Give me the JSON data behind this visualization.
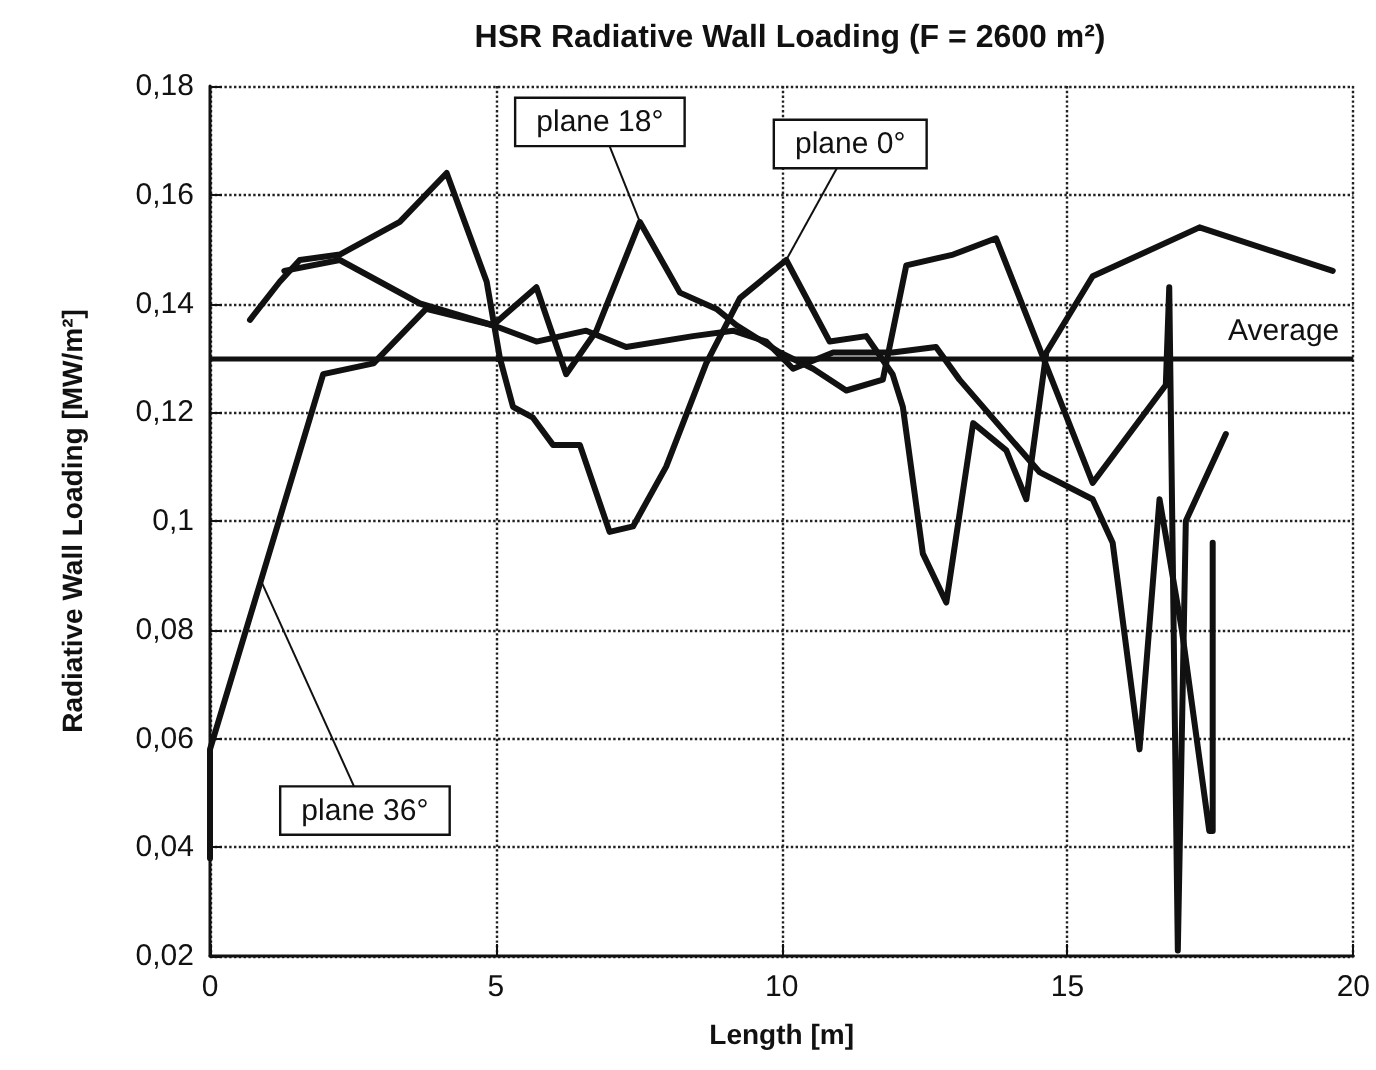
{
  "chart_data": {
    "type": "line",
    "title": "HSR Radiative Wall Loading (F = 2600 m²)",
    "xlabel": "Length [m]",
    "ylabel": "Radiative Wall Loading [MW/m²]",
    "xlim": [
      0,
      20
    ],
    "xticks": [
      0,
      5,
      10,
      15,
      20
    ],
    "ylim": [
      0.02,
      0.18
    ],
    "yticks": [
      {
        "value": 0.02,
        "label": "0,02"
      },
      {
        "value": 0.04,
        "label": "0,04"
      },
      {
        "value": 0.06,
        "label": "0,06"
      },
      {
        "value": 0.08,
        "label": "0,08"
      },
      {
        "value": 0.1,
        "label": "0,1"
      },
      {
        "value": 0.12,
        "label": "0,12"
      },
      {
        "value": 0.14,
        "label": "0,14"
      },
      {
        "value": 0.16,
        "label": "0,16"
      },
      {
        "value": 0.18,
        "label": "0,18"
      }
    ],
    "grid": true,
    "legend": false,
    "marker": "none",
    "line_style": "solid",
    "ref_lines": [
      {
        "axis": "y",
        "value": 0.13,
        "label": "Average",
        "color": "#111111"
      }
    ],
    "series": [
      {
        "name": "plane 0°",
        "color": "#111111",
        "x": [
          0.7,
          1.22,
          1.57,
          2.27,
          3.32,
          4.14,
          4.84,
          5.07,
          5.3,
          5.65,
          6.0,
          6.47,
          6.99,
          7.4,
          7.98,
          8.68,
          9.27,
          10.08,
          10.84,
          11.48,
          11.94,
          12.12,
          12.47,
          12.88,
          13.35,
          13.93,
          14.28,
          14.63,
          15.44,
          17.31,
          19.64
        ],
        "values": [
          0.137,
          0.144,
          0.148,
          0.149,
          0.155,
          0.164,
          0.144,
          0.13,
          0.121,
          0.119,
          0.114,
          0.114,
          0.098,
          0.099,
          0.11,
          0.129,
          0.141,
          0.148,
          0.133,
          0.134,
          0.127,
          0.121,
          0.094,
          0.085,
          0.118,
          0.113,
          0.104,
          0.131,
          0.145,
          0.154,
          0.146
        ]
      },
      {
        "name": "plane 18°",
        "color": "#111111",
        "x": [
          1.3,
          2.27,
          3.67,
          4.95,
          5.71,
          6.23,
          6.76,
          7.52,
          8.22,
          8.86,
          9.21,
          9.97,
          10.55,
          11.13,
          11.77,
          12.18,
          13.0,
          13.75,
          15.44,
          16.72,
          16.78,
          16.93,
          17.07,
          17.77
        ],
        "values": [
          0.146,
          0.148,
          0.14,
          0.136,
          0.143,
          0.127,
          0.135,
          0.155,
          0.142,
          0.139,
          0.136,
          0.131,
          0.128,
          0.124,
          0.126,
          0.147,
          0.149,
          0.152,
          0.107,
          0.125,
          0.143,
          0.021,
          0.1,
          0.116
        ]
      },
      {
        "name": "plane 36°",
        "color": "#111111",
        "x": [
          0,
          0,
          1.98,
          2.86,
          3.78,
          4.95,
          5.71,
          6.58,
          7.28,
          8.45,
          9.15,
          9.73,
          10.2,
          10.9,
          11.94,
          12.7,
          13.11,
          14.51,
          15.44,
          15.79,
          16.26,
          16.61,
          17.0,
          17.48,
          17.54,
          17.54
        ],
        "values": [
          0.038,
          0.058,
          0.127,
          0.129,
          0.139,
          0.136,
          0.133,
          0.135,
          0.132,
          0.134,
          0.135,
          0.133,
          0.128,
          0.131,
          0.131,
          0.132,
          0.126,
          0.109,
          0.104,
          0.096,
          0.058,
          0.104,
          0.08,
          0.043,
          0.043,
          0.096
        ]
      }
    ]
  }
}
